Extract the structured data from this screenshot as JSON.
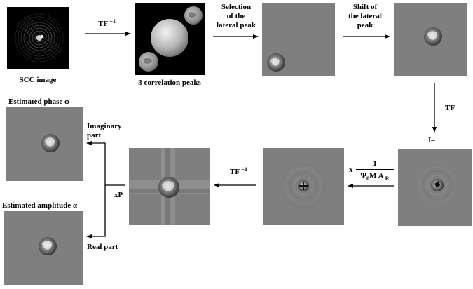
{
  "panels": {
    "scc_image": "SCC image",
    "correlation_peaks": "3 correlation peaks",
    "estimated_phase": "Estimated phase ϕ",
    "estimated_amplitude": "Estimated amplitude α"
  },
  "steps": {
    "tf_inverse_1": {
      "text": "TF",
      "exp": "−1"
    },
    "selection": [
      "Selection",
      "of the",
      "lateral peak"
    ],
    "shift": [
      "Shift of",
      "the lateral",
      "peak"
    ],
    "tf": "TF",
    "i_minus": "I–",
    "multiply_x": "x",
    "frac_num": "1",
    "frac_den": {
      "psi": "Ψ",
      "psi_sub": "0",
      "rest": "M A",
      "a_sub": "R"
    },
    "tf_inverse_2": {
      "text": "TF",
      "exp": "−1"
    },
    "xp": "xP",
    "imag_part": [
      "Imaginary",
      "part"
    ],
    "real_part": "Real part"
  },
  "colors": {
    "background": "#ffffff",
    "panel_gray": "#7f7f7f",
    "arrow": "#000000"
  }
}
